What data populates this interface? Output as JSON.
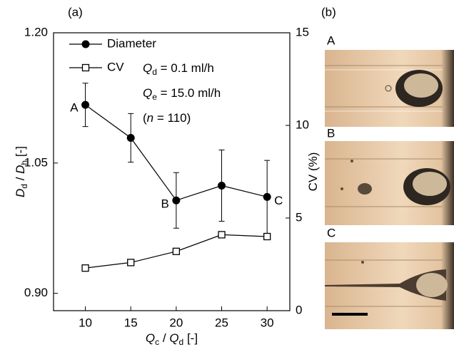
{
  "panel_a": {
    "label": "(a)"
  },
  "panel_b": {
    "label": "(b)",
    "labels": [
      "A",
      "B",
      "C"
    ]
  },
  "chart_data": {
    "type": "line",
    "x": [
      10,
      15,
      20,
      25,
      30
    ],
    "xlim": [
      6.5,
      32.5
    ],
    "xticks": [
      10,
      15,
      20,
      25,
      30
    ],
    "ylim": [
      0.88,
      1.2
    ],
    "yticks": [
      {
        "value": 0.9,
        "label": "0.90"
      },
      {
        "value": 1.05,
        "label": "1.05"
      },
      {
        "value": 1.2,
        "label": "1.20"
      }
    ],
    "y2lim": [
      0,
      15
    ],
    "y2ticks": [
      0,
      5,
      10,
      15
    ],
    "xlabel": [
      {
        "text": "Q",
        "sub": "c",
        "italic": true
      },
      {
        "text": " / "
      },
      {
        "text": "Q",
        "sub": "d",
        "italic": true
      },
      {
        "text": " [-]"
      }
    ],
    "ylabel": [
      {
        "text": "D",
        "sub": "d",
        "italic": true
      },
      {
        "text": " / "
      },
      {
        "text": "D",
        "sub": "h",
        "italic": true
      },
      {
        "text": " [-]"
      }
    ],
    "y2label": [
      {
        "text": "CV (%)"
      }
    ],
    "annotations": [
      [
        {
          "text": "Q",
          "sub": "d",
          "italic": true
        },
        {
          "text": " = 0.1 ml/h"
        }
      ],
      [
        {
          "text": "Q",
          "sub": "e",
          "italic": true
        },
        {
          "text": " = 15.0 ml/h"
        }
      ],
      [
        {
          "text": "("
        },
        {
          "text": "n",
          "italic": true
        },
        {
          "text": " = 110)"
        }
      ]
    ],
    "series": [
      {
        "name": "Diameter",
        "color": "#000000",
        "marker": "filled-circle",
        "values": [
          1.117,
          1.079,
          1.007,
          1.024,
          1.011
        ],
        "errors": [
          0.025,
          0.028,
          0.032,
          0.041,
          0.042
        ],
        "point_labels": [
          "A",
          null,
          "B",
          null,
          "C"
        ]
      },
      {
        "name": "CV",
        "color": "#000000",
        "marker": "open-square",
        "axis": "y2",
        "values": [
          2.3,
          2.6,
          3.2,
          4.1,
          4.0
        ]
      }
    ]
  }
}
